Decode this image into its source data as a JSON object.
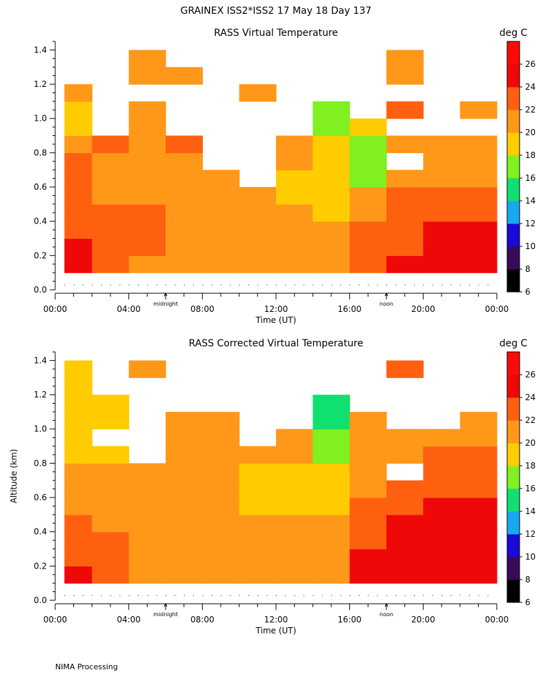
{
  "header": {
    "title": "GRAINEX ISS2*ISS2  17 May 18 Day 137"
  },
  "footer": {
    "text": "NIMA Processing"
  },
  "colorbar": {
    "units": "deg C",
    "ticks": [
      "6",
      "8",
      "10",
      "12",
      "14",
      "16",
      "18",
      "20",
      "22",
      "24",
      "26"
    ],
    "colors": [
      "#000000",
      "#3a0a5a",
      "#1a0ad8",
      "#18a8f0",
      "#10e070",
      "#80f020",
      "#ffcc00",
      "#ff9818",
      "#ff6010",
      "#ee0808",
      "#ff0a0a"
    ]
  },
  "axes": {
    "xlabel": "Time (UT)",
    "ylabel": "Altitude (km)",
    "xticks": [
      "00:00",
      "04:00",
      "08:00",
      "12:00",
      "16:00",
      "20:00",
      "00:00"
    ],
    "yticks": [
      "0.0",
      "0.2",
      "0.4",
      "0.6",
      "0.8",
      "1.0",
      "1.2",
      "1.4"
    ],
    "local_markers": [
      {
        "label": "midnight",
        "hour": 6
      },
      {
        "label": "noon",
        "hour": 18
      }
    ]
  },
  "chart_data": [
    {
      "type": "heatmap",
      "title": "RASS Virtual Temperature",
      "xlabel": "Time (UT)",
      "ylabel": "",
      "xlim": [
        0,
        24
      ],
      "ylim": [
        0,
        1.45
      ],
      "units": "deg C",
      "rows_altitude_km": [
        0.15,
        0.25,
        0.35,
        0.45,
        0.55,
        0.65,
        0.75,
        0.85,
        0.95,
        1.05,
        1.15,
        1.25,
        1.35
      ],
      "cols_hour_start": [
        0.5,
        2,
        4,
        6,
        8,
        10,
        12,
        14,
        16,
        18,
        20,
        22
      ],
      "cols_hour_end": [
        2,
        4,
        6,
        8,
        10,
        12,
        14,
        16,
        18,
        20,
        22,
        24
      ],
      "values": [
        [
          25,
          22,
          21,
          20,
          20,
          20,
          20,
          20,
          22,
          24,
          24,
          25
        ],
        [
          25,
          22,
          22,
          21,
          20,
          20,
          20,
          20,
          22,
          23,
          24,
          25
        ],
        [
          23,
          22,
          22,
          21,
          20,
          20,
          20,
          20,
          22,
          22,
          24,
          24
        ],
        [
          23,
          22,
          22,
          21,
          20,
          20,
          20,
          19,
          21,
          22,
          23,
          23
        ],
        [
          22,
          21,
          21,
          21,
          20,
          20,
          19,
          19,
          20,
          22,
          22,
          22
        ],
        [
          22,
          21,
          21,
          20,
          20,
          null,
          19,
          19,
          17,
          21,
          21,
          21
        ],
        [
          22,
          21,
          20,
          21,
          null,
          null,
          20,
          18,
          17,
          null,
          20,
          20
        ],
        [
          21,
          22,
          21,
          22,
          null,
          null,
          20,
          19,
          17,
          20,
          20,
          20
        ],
        [
          19,
          null,
          20,
          null,
          null,
          null,
          null,
          17,
          19,
          null,
          null,
          null
        ],
        [
          19,
          null,
          20,
          null,
          null,
          null,
          null,
          17,
          null,
          22,
          null,
          20
        ],
        [
          20,
          null,
          null,
          null,
          null,
          20,
          null,
          null,
          null,
          null,
          null,
          null
        ],
        [
          null,
          null,
          20,
          20,
          null,
          null,
          null,
          null,
          null,
          20,
          null,
          null
        ],
        [
          null,
          null,
          20,
          null,
          null,
          null,
          null,
          null,
          null,
          20,
          null,
          null
        ]
      ]
    },
    {
      "type": "heatmap",
      "title": "RASS Corrected Virtual Temperature",
      "xlabel": "Time (UT)",
      "ylabel": "Altitude (km)",
      "xlim": [
        0,
        24
      ],
      "ylim": [
        0,
        1.45
      ],
      "units": "deg C",
      "rows_altitude_km": [
        0.15,
        0.25,
        0.35,
        0.45,
        0.55,
        0.65,
        0.75,
        0.85,
        0.95,
        1.05,
        1.15,
        1.25,
        1.35
      ],
      "cols_hour_start": [
        0.5,
        2,
        4,
        6,
        8,
        10,
        12,
        14,
        16,
        18,
        20,
        22
      ],
      "cols_hour_end": [
        2,
        4,
        6,
        8,
        10,
        12,
        14,
        16,
        18,
        20,
        22,
        24
      ],
      "values": [
        [
          24,
          22,
          21,
          20,
          20,
          20,
          20,
          21,
          25,
          25,
          25,
          25
        ],
        [
          23,
          22,
          21,
          20,
          20,
          20,
          20,
          21,
          24,
          25,
          25,
          25
        ],
        [
          22,
          22,
          21,
          20,
          20,
          20,
          20,
          20,
          23,
          24,
          25,
          25
        ],
        [
          22,
          21,
          21,
          20,
          20,
          20,
          20,
          20,
          22,
          24,
          24,
          24
        ],
        [
          21,
          21,
          20,
          20,
          20,
          19,
          19,
          19,
          22,
          23,
          24,
          24
        ],
        [
          21,
          20,
          20,
          21,
          20,
          19,
          19,
          19,
          21,
          23,
          23,
          23
        ],
        [
          20,
          20,
          20,
          21,
          20,
          19,
          19,
          18,
          21,
          null,
          22,
          22
        ],
        [
          19,
          19,
          null,
          21,
          20,
          20,
          20,
          17,
          21,
          21,
          22,
          22
        ],
        [
          19,
          null,
          null,
          21,
          20,
          null,
          20,
          17,
          21,
          21,
          21,
          21
        ],
        [
          18,
          18,
          null,
          20,
          20,
          null,
          null,
          15,
          20,
          null,
          null,
          21
        ],
        [
          18,
          18,
          null,
          null,
          null,
          null,
          null,
          15,
          null,
          null,
          null,
          null
        ],
        [
          18,
          null,
          null,
          null,
          null,
          null,
          null,
          null,
          null,
          null,
          null,
          null
        ],
        [
          19,
          null,
          20,
          null,
          null,
          null,
          null,
          null,
          null,
          22,
          null,
          null
        ]
      ]
    }
  ]
}
